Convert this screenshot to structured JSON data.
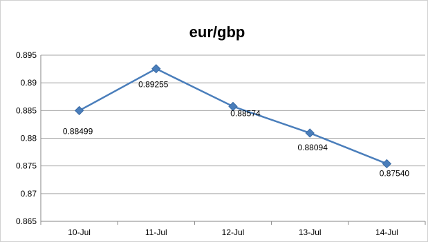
{
  "chart_data": {
    "type": "line",
    "title": "eur/gbp",
    "xlabel": "",
    "ylabel": "",
    "categories": [
      "10-Jul",
      "11-Jul",
      "12-Jul",
      "13-Jul",
      "14-Jul"
    ],
    "series": [
      {
        "values": [
          0.88499,
          0.89255,
          0.88574,
          0.88094,
          0.8754
        ],
        "data_labels": [
          "0.88499",
          "0.89255",
          "0.88574",
          "0.88094",
          "0.87540"
        ],
        "color": "#4a7ebb",
        "marker": "diamond"
      }
    ],
    "ylim": [
      0.865,
      0.895
    ],
    "yticks": [
      "0.865",
      "0.87",
      "0.875",
      "0.88",
      "0.885",
      "0.89",
      "0.895"
    ],
    "grid": true,
    "legend": "none"
  }
}
